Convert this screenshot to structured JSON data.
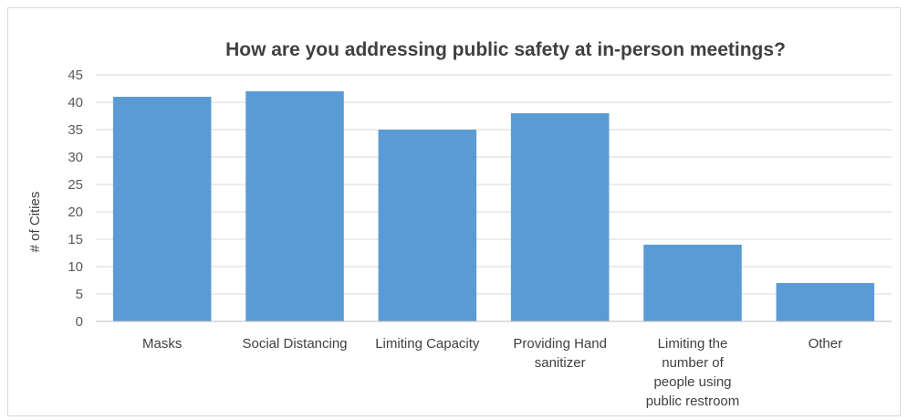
{
  "chart_data": {
    "type": "bar",
    "title": "How are you addressing public safety at in-person meetings?",
    "xlabel": "",
    "ylabel": "# of Cities",
    "categories": [
      "Masks",
      "Social Distancing",
      "Limiting Capacity",
      "Providing Hand sanitizer",
      "Limiting the number of people using public restroom",
      "Other"
    ],
    "category_lines": [
      [
        "Masks"
      ],
      [
        "Social Distancing"
      ],
      [
        "Limiting Capacity"
      ],
      [
        "Providing Hand",
        "sanitizer"
      ],
      [
        "Limiting the",
        "number of",
        "people using",
        "public restroom"
      ],
      [
        "Other"
      ]
    ],
    "values": [
      41,
      42,
      35,
      38,
      14,
      7
    ],
    "ylim": [
      0,
      45
    ],
    "yticks": [
      0,
      5,
      10,
      15,
      20,
      25,
      30,
      35,
      40,
      45
    ],
    "grid": true,
    "legend": "none",
    "colors": {
      "bar": "#5b9bd5",
      "grid": "#d9d9d9",
      "axis": "#bfbfbf"
    }
  }
}
